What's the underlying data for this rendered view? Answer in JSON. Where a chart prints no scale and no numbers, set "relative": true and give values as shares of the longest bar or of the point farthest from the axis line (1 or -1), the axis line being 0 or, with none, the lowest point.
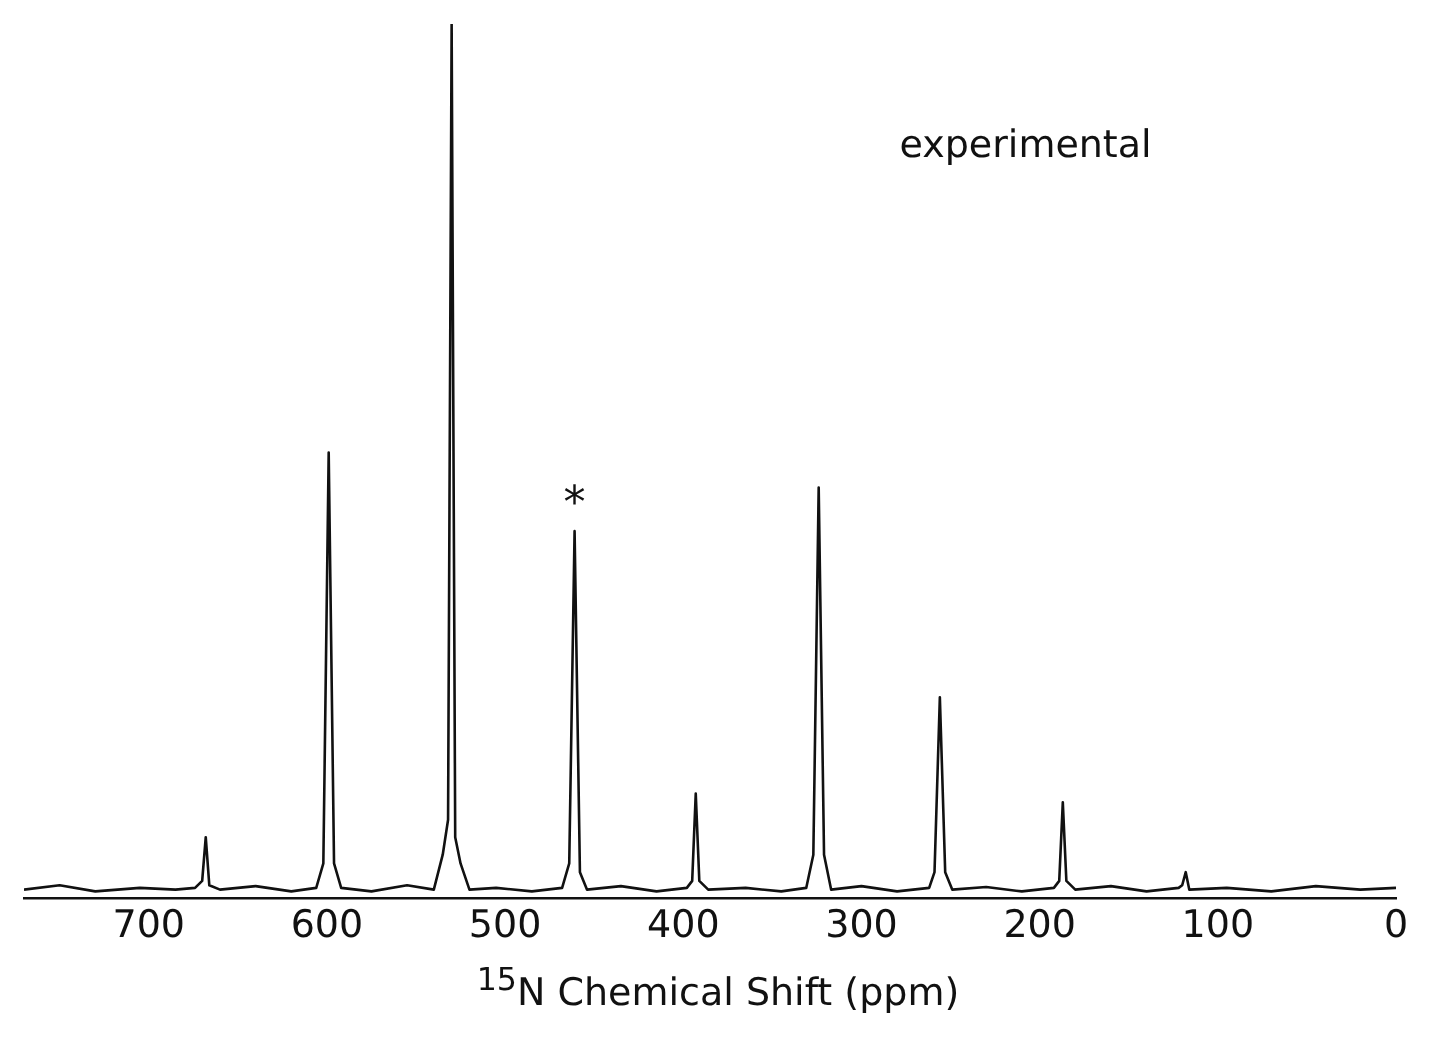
{
  "chart_data": {
    "type": "line",
    "xlabel": "$^{15}$N Chemical Shift (ppm)",
    "relative": true,
    "x": [
      770,
      750,
      730,
      705,
      685,
      674,
      670,
      668,
      666,
      660,
      640,
      620,
      606,
      602,
      599,
      596,
      592,
      575,
      555,
      540,
      535,
      532,
      530,
      528,
      525,
      520,
      505,
      485,
      468,
      464,
      461,
      458,
      454,
      435,
      415,
      398,
      395,
      393,
      391,
      386,
      365,
      345,
      331,
      327,
      324,
      321,
      317,
      300,
      280,
      262,
      259,
      256,
      253,
      249,
      230,
      210,
      192,
      189,
      187,
      185,
      180,
      160,
      140,
      122,
      120,
      118,
      116,
      95,
      70,
      45,
      20,
      0
    ],
    "series": [
      {
        "color": "#111111",
        "values": [
          0.01,
          0.015,
          0.008,
          0.012,
          0.01,
          0.012,
          0.02,
          0.07,
          0.015,
          0.01,
          0.014,
          0.008,
          0.012,
          0.04,
          0.51,
          0.04,
          0.012,
          0.008,
          0.015,
          0.01,
          0.05,
          0.09,
          1,
          0.07,
          0.04,
          0.01,
          0.012,
          0.008,
          0.012,
          0.04,
          0.42,
          0.03,
          0.01,
          0.014,
          0.008,
          0.012,
          0.02,
          0.12,
          0.02,
          0.01,
          0.012,
          0.008,
          0.012,
          0.05,
          0.47,
          0.05,
          0.01,
          0.014,
          0.008,
          0.012,
          0.03,
          0.23,
          0.03,
          0.01,
          0.013,
          0.008,
          0.012,
          0.02,
          0.11,
          0.02,
          0.01,
          0.014,
          0.008,
          0.012,
          0.015,
          0.03,
          0.01,
          0.012,
          0.008,
          0.014,
          0.01,
          0.012
        ]
      }
    ],
    "xlim": [
      770,
      0
    ],
    "xticks": [
      700,
      600,
      500,
      400,
      300,
      200,
      100,
      0
    ],
    "annotations": [
      "experimental",
      {
        "text": "*",
        "x": 461,
        "y": 0.42
      }
    ],
    "grid": false,
    "legend": false,
    "marker": "none",
    "line_style": "solid"
  }
}
